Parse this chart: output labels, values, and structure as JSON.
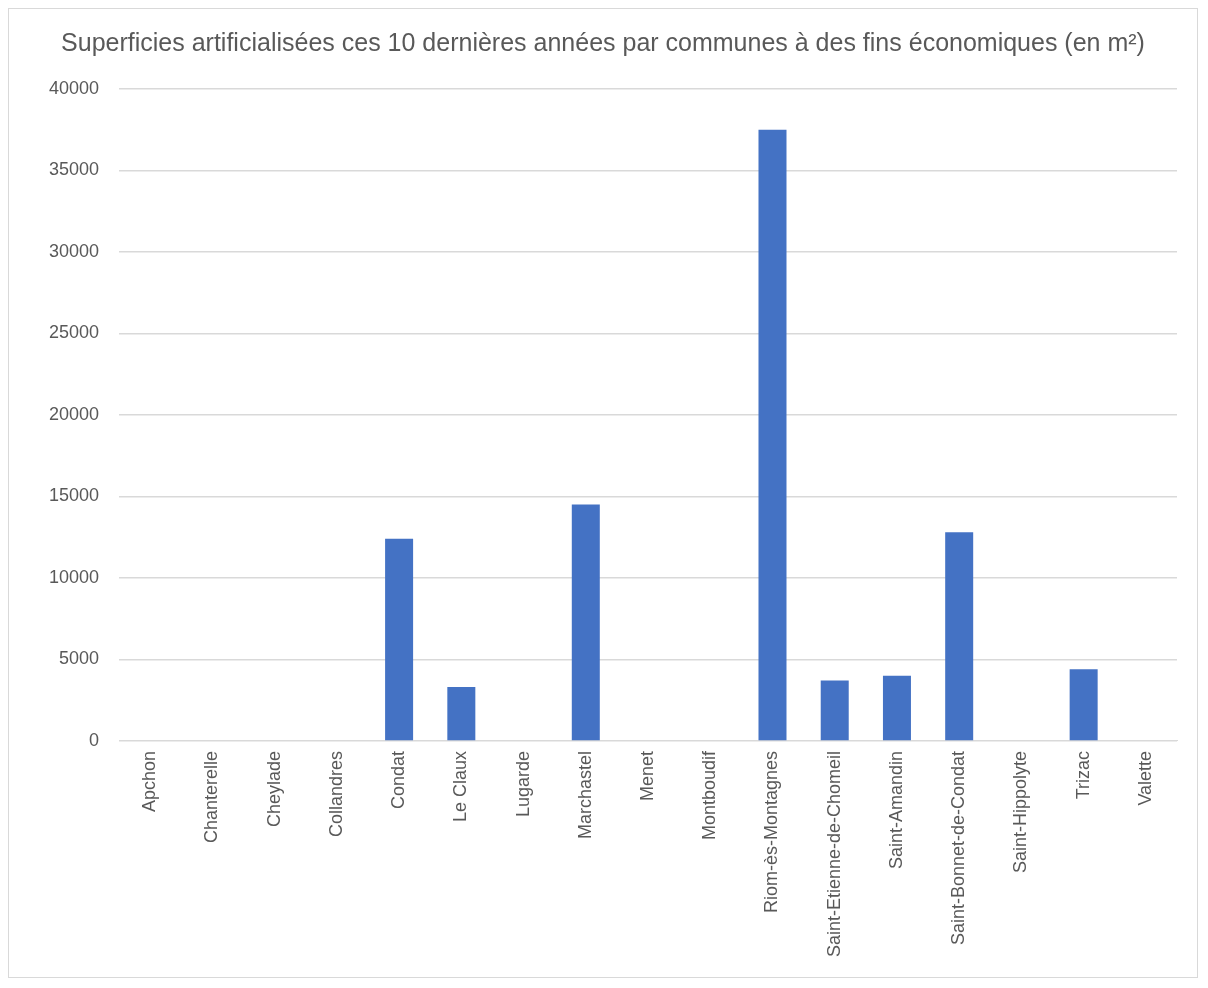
{
  "chart_data": {
    "type": "bar",
    "title": "Superficies artificialisées ces 10 dernières années par communes à des fins économiques (en m²)",
    "categories": [
      "Apchon",
      "Chanterelle",
      "Cheylade",
      "Collandres",
      "Condat",
      "Le Claux",
      "Lugarde",
      "Marchastel",
      "Menet",
      "Montboudif",
      "Riom-ès-Montagnes",
      "Saint-Etienne-de-Chomeil",
      "Saint-Amandin",
      "Saint-Bonnet-de-Condat",
      "Saint-Hippolyte",
      "Trizac",
      "Valette"
    ],
    "values": [
      0,
      0,
      0,
      0,
      12400,
      3300,
      0,
      14500,
      0,
      0,
      37500,
      3700,
      4000,
      12800,
      0,
      4400,
      0
    ],
    "color": "#4472c4",
    "ylim": [
      0,
      40000
    ],
    "yticks": [
      0,
      5000,
      10000,
      15000,
      20000,
      25000,
      30000,
      35000,
      40000
    ],
    "grid": "y",
    "legend": false
  }
}
